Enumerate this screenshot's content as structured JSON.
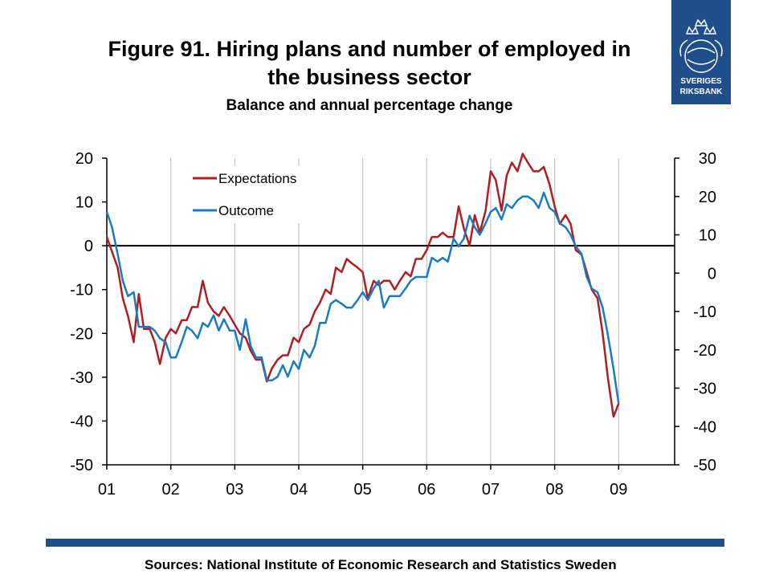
{
  "header": {
    "title_line1": "Figure 91. Hiring plans and number of employed in",
    "title_line2": "the business sector",
    "subtitle": "Balance and annual percentage change"
  },
  "logo": {
    "text_line1": "SVERIGES",
    "text_line2": "RIKSBANK",
    "color": "#1f4e8a"
  },
  "source": "Sources: National Institute of Economic Research and Statistics Sweden",
  "chart_data": {
    "type": "line",
    "title": "Figure 91. Hiring plans and number of employed in the business sector",
    "subtitle": "Balance and annual percentage change",
    "x_tick_labels": [
      "01",
      "02",
      "03",
      "04",
      "05",
      "06",
      "07",
      "08",
      "09"
    ],
    "x_range": [
      2001.0,
      2009.875
    ],
    "y_left": {
      "range": [
        -50,
        20
      ],
      "ticks": [
        20,
        10,
        0,
        -10,
        -20,
        -30,
        -40,
        -50
      ],
      "tick_labels": [
        "20",
        "10",
        "0",
        "-10",
        "-20",
        "-30",
        "-40",
        "-50"
      ]
    },
    "y_right": {
      "range": [
        -50,
        30
      ],
      "ticks": [
        30,
        20,
        10,
        0,
        -10,
        -20,
        -30,
        -40,
        -50
      ],
      "tick_labels": [
        "30",
        "20",
        "10",
        "0",
        "-10",
        "-20",
        "-30",
        "-40",
        "-50"
      ]
    },
    "zero_line": 0,
    "grid": "vertical at year ticks",
    "legend": {
      "position": "top-left"
    },
    "series": [
      {
        "name": "Expectations",
        "axis": "left",
        "color": "#b01e23",
        "points": [
          [
            2001.0,
            2
          ],
          [
            2001.17,
            -5
          ],
          [
            2001.25,
            -12
          ],
          [
            2001.33,
            -16
          ],
          [
            2001.42,
            -22
          ],
          [
            2001.5,
            -11
          ],
          [
            2001.58,
            -19
          ],
          [
            2001.67,
            -19
          ],
          [
            2001.75,
            -22
          ],
          [
            2001.83,
            -27
          ],
          [
            2001.92,
            -21
          ],
          [
            2002.0,
            -19
          ],
          [
            2002.08,
            -20
          ],
          [
            2002.17,
            -17
          ],
          [
            2002.25,
            -17
          ],
          [
            2002.33,
            -14
          ],
          [
            2002.42,
            -14
          ],
          [
            2002.5,
            -8
          ],
          [
            2002.58,
            -13
          ],
          [
            2002.67,
            -15
          ],
          [
            2002.75,
            -16
          ],
          [
            2002.83,
            -14
          ],
          [
            2002.92,
            -16
          ],
          [
            2003.0,
            -18
          ],
          [
            2003.08,
            -20
          ],
          [
            2003.17,
            -21
          ],
          [
            2003.25,
            -24
          ],
          [
            2003.33,
            -26
          ],
          [
            2003.42,
            -26
          ],
          [
            2003.5,
            -31
          ],
          [
            2003.58,
            -28
          ],
          [
            2003.67,
            -26
          ],
          [
            2003.75,
            -25
          ],
          [
            2003.83,
            -25
          ],
          [
            2003.92,
            -21
          ],
          [
            2004.0,
            -22
          ],
          [
            2004.08,
            -19
          ],
          [
            2004.17,
            -18
          ],
          [
            2004.25,
            -15
          ],
          [
            2004.33,
            -13
          ],
          [
            2004.42,
            -10
          ],
          [
            2004.5,
            -11
          ],
          [
            2004.58,
            -5
          ],
          [
            2004.67,
            -6
          ],
          [
            2004.75,
            -3
          ],
          [
            2004.83,
            -4
          ],
          [
            2004.92,
            -5
          ],
          [
            2005.0,
            -6
          ],
          [
            2005.08,
            -12
          ],
          [
            2005.17,
            -8
          ],
          [
            2005.25,
            -9
          ],
          [
            2005.33,
            -8
          ],
          [
            2005.42,
            -8
          ],
          [
            2005.5,
            -10
          ],
          [
            2005.58,
            -8
          ],
          [
            2005.67,
            -6
          ],
          [
            2005.75,
            -7
          ],
          [
            2005.83,
            -3
          ],
          [
            2005.92,
            -3
          ],
          [
            2006.0,
            -1
          ],
          [
            2006.08,
            2
          ],
          [
            2006.17,
            2
          ],
          [
            2006.25,
            3
          ],
          [
            2006.33,
            2
          ],
          [
            2006.42,
            2
          ],
          [
            2006.5,
            9
          ],
          [
            2006.58,
            4
          ],
          [
            2006.67,
            0
          ],
          [
            2006.75,
            7
          ],
          [
            2006.83,
            3
          ],
          [
            2006.92,
            8
          ],
          [
            2007.0,
            17
          ],
          [
            2007.08,
            15
          ],
          [
            2007.17,
            8
          ],
          [
            2007.25,
            16
          ],
          [
            2007.33,
            19
          ],
          [
            2007.42,
            17
          ],
          [
            2007.5,
            21
          ],
          [
            2007.58,
            19
          ],
          [
            2007.67,
            17
          ],
          [
            2007.75,
            17
          ],
          [
            2007.83,
            18
          ],
          [
            2007.92,
            14
          ],
          [
            2008.0,
            9
          ],
          [
            2008.08,
            5
          ],
          [
            2008.17,
            7
          ],
          [
            2008.25,
            5
          ],
          [
            2008.33,
            -1
          ],
          [
            2008.42,
            -2
          ],
          [
            2008.5,
            -6
          ],
          [
            2008.58,
            -10
          ],
          [
            2008.67,
            -12
          ],
          [
            2008.75,
            -20
          ],
          [
            2008.83,
            -30
          ],
          [
            2008.92,
            -39
          ],
          [
            2009.0,
            -36
          ]
        ]
      },
      {
        "name": "Outcome",
        "axis": "right",
        "color": "#1a7ac2",
        "points": [
          [
            2001.0,
            16
          ],
          [
            2001.08,
            12
          ],
          [
            2001.17,
            5
          ],
          [
            2001.25,
            -2
          ],
          [
            2001.33,
            -6
          ],
          [
            2001.42,
            -5
          ],
          [
            2001.5,
            -14
          ],
          [
            2001.58,
            -14
          ],
          [
            2001.67,
            -14
          ],
          [
            2001.75,
            -15
          ],
          [
            2001.83,
            -17
          ],
          [
            2001.92,
            -18
          ],
          [
            2002.0,
            -22
          ],
          [
            2002.08,
            -22
          ],
          [
            2002.17,
            -18
          ],
          [
            2002.25,
            -14
          ],
          [
            2002.33,
            -15
          ],
          [
            2002.42,
            -17
          ],
          [
            2002.5,
            -13
          ],
          [
            2002.58,
            -14
          ],
          [
            2002.67,
            -11
          ],
          [
            2002.75,
            -15
          ],
          [
            2002.83,
            -12
          ],
          [
            2002.92,
            -15
          ],
          [
            2003.0,
            -15
          ],
          [
            2003.08,
            -20
          ],
          [
            2003.17,
            -12
          ],
          [
            2003.25,
            -19
          ],
          [
            2003.33,
            -22
          ],
          [
            2003.42,
            -22
          ],
          [
            2003.5,
            -28
          ],
          [
            2003.58,
            -28
          ],
          [
            2003.67,
            -27
          ],
          [
            2003.75,
            -24
          ],
          [
            2003.83,
            -27
          ],
          [
            2003.92,
            -23
          ],
          [
            2004.0,
            -25
          ],
          [
            2004.08,
            -20
          ],
          [
            2004.17,
            -22
          ],
          [
            2004.25,
            -19
          ],
          [
            2004.33,
            -13
          ],
          [
            2004.42,
            -13
          ],
          [
            2004.5,
            -8
          ],
          [
            2004.58,
            -7
          ],
          [
            2004.67,
            -8
          ],
          [
            2004.75,
            -9
          ],
          [
            2004.83,
            -9
          ],
          [
            2004.92,
            -7
          ],
          [
            2005.0,
            -5
          ],
          [
            2005.08,
            -7
          ],
          [
            2005.17,
            -4
          ],
          [
            2005.25,
            -2
          ],
          [
            2005.33,
            -9
          ],
          [
            2005.42,
            -6
          ],
          [
            2005.5,
            -6
          ],
          [
            2005.58,
            -6
          ],
          [
            2005.67,
            -4
          ],
          [
            2005.75,
            -2
          ],
          [
            2005.83,
            -1
          ],
          [
            2005.92,
            -1
          ],
          [
            2006.0,
            -1
          ],
          [
            2006.08,
            4
          ],
          [
            2006.17,
            3
          ],
          [
            2006.25,
            4
          ],
          [
            2006.33,
            3
          ],
          [
            2006.42,
            9
          ],
          [
            2006.5,
            7
          ],
          [
            2006.58,
            9
          ],
          [
            2006.67,
            15
          ],
          [
            2006.75,
            12
          ],
          [
            2006.83,
            10
          ],
          [
            2006.92,
            13
          ],
          [
            2007.0,
            16
          ],
          [
            2007.08,
            17
          ],
          [
            2007.17,
            14
          ],
          [
            2007.25,
            18
          ],
          [
            2007.33,
            17
          ],
          [
            2007.42,
            19
          ],
          [
            2007.5,
            20
          ],
          [
            2007.58,
            20
          ],
          [
            2007.67,
            19
          ],
          [
            2007.75,
            17
          ],
          [
            2007.83,
            21
          ],
          [
            2007.92,
            17
          ],
          [
            2008.0,
            16
          ],
          [
            2008.08,
            13
          ],
          [
            2008.17,
            12
          ],
          [
            2008.25,
            10
          ],
          [
            2008.33,
            7
          ],
          [
            2008.42,
            5
          ],
          [
            2008.5,
            -1
          ],
          [
            2008.58,
            -4
          ],
          [
            2008.67,
            -5
          ],
          [
            2008.75,
            -9
          ],
          [
            2008.83,
            -16
          ],
          [
            2008.92,
            -25
          ],
          [
            2009.0,
            -34
          ]
        ]
      }
    ]
  }
}
